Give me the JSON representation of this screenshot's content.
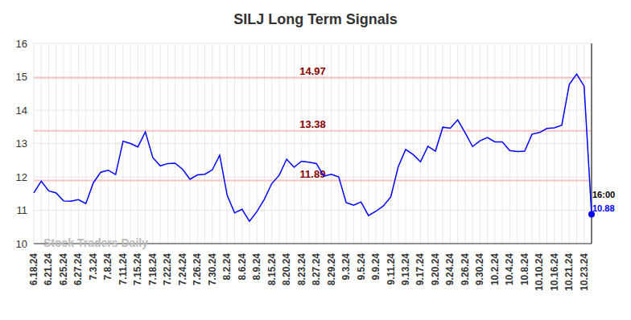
{
  "chart_data": {
    "type": "line",
    "title": "SILJ Long Term Signals",
    "watermark": "Stock Traders Daily",
    "annotations": [
      "16:00"
    ],
    "signals": [
      14.97,
      13.38,
      11.89
    ],
    "categories": [
      "6.18.24",
      null,
      "6.21.24",
      null,
      "6.25.24",
      null,
      "6.27.24",
      null,
      "7.3.24",
      null,
      "7.8.24",
      null,
      "7.11.24",
      null,
      "7.15.24",
      null,
      "7.18.24",
      null,
      "7.22.24",
      null,
      "7.24.24",
      null,
      "7.26.24",
      null,
      "7.30.24",
      null,
      "8.2.24",
      null,
      "8.6.24",
      null,
      "8.9.24",
      null,
      "8.15.24",
      null,
      "8.20.24",
      null,
      "8.23.24",
      null,
      "8.27.24",
      null,
      "8.29.24",
      null,
      "9.3.24",
      null,
      "9.5.24",
      null,
      "9.9.24",
      null,
      "9.11.24",
      null,
      "9.13.24",
      null,
      "9.17.24",
      null,
      "9.20.24",
      null,
      "9.24.24",
      null,
      "9.26.24",
      null,
      "9.30.24",
      null,
      "10.2.24",
      null,
      "10.4.24",
      null,
      "10.8.24",
      null,
      "10.10.24",
      null,
      "10.16.24",
      null,
      "10.21.24",
      null,
      "10.23.24",
      null
    ],
    "values": [
      11.52,
      11.87,
      11.58,
      11.52,
      11.28,
      11.27,
      11.32,
      11.2,
      11.82,
      12.14,
      12.2,
      12.07,
      13.07,
      13.0,
      12.9,
      13.35,
      12.58,
      12.33,
      12.4,
      12.41,
      12.23,
      11.93,
      12.06,
      12.08,
      12.21,
      12.65,
      11.45,
      10.92,
      11.03,
      10.67,
      10.96,
      11.33,
      11.8,
      12.05,
      12.53,
      12.29,
      12.47,
      12.44,
      12.4,
      12.02,
      12.08,
      12.0,
      11.23,
      11.15,
      11.25,
      10.84,
      10.97,
      11.13,
      11.4,
      12.3,
      12.82,
      12.67,
      12.45,
      12.92,
      12.77,
      13.49,
      13.46,
      13.71,
      13.32,
      12.91,
      13.08,
      13.18,
      13.05,
      13.05,
      12.79,
      12.76,
      12.77,
      13.28,
      13.33,
      13.45,
      13.47,
      13.55,
      14.77,
      15.08,
      14.72,
      10.88
    ],
    "color": "#0000ff",
    "ylim": [
      10,
      16
    ],
    "yticks": [
      10,
      11,
      12,
      13,
      14,
      15,
      16
    ],
    "grid": true
  }
}
